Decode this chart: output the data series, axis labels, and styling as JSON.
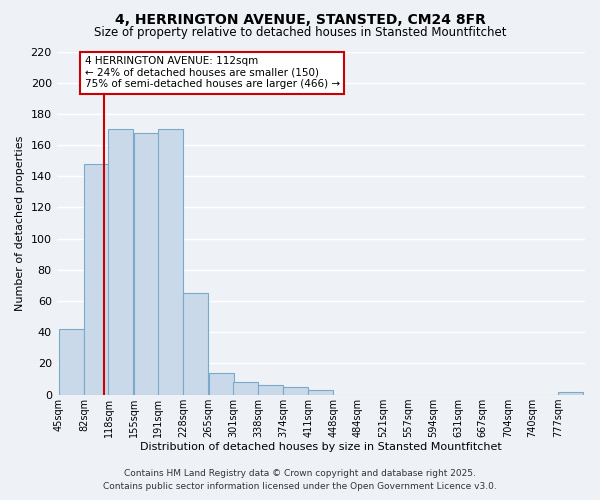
{
  "title": "4, HERRINGTON AVENUE, STANSTED, CM24 8FR",
  "subtitle": "Size of property relative to detached houses in Stansted Mountfitchet",
  "xlabel": "Distribution of detached houses by size in Stansted Mountfitchet",
  "ylabel": "Number of detached properties",
  "bar_labels": [
    "45sqm",
    "82sqm",
    "118sqm",
    "155sqm",
    "191sqm",
    "228sqm",
    "265sqm",
    "301sqm",
    "338sqm",
    "374sqm",
    "411sqm",
    "448sqm",
    "484sqm",
    "521sqm",
    "557sqm",
    "594sqm",
    "631sqm",
    "667sqm",
    "704sqm",
    "740sqm",
    "777sqm"
  ],
  "bar_values": [
    42,
    148,
    170,
    168,
    170,
    65,
    14,
    8,
    6,
    5,
    3,
    0,
    0,
    0,
    0,
    0,
    0,
    0,
    0,
    0,
    2
  ],
  "bar_color": "#c9d9ea",
  "bar_edge_color": "#7aaac8",
  "ylim": [
    0,
    220
  ],
  "yticks": [
    0,
    20,
    40,
    60,
    80,
    100,
    120,
    140,
    160,
    180,
    200,
    220
  ],
  "property_line_x": 112,
  "property_line_color": "#cc0000",
  "annotation_line1": "4 HERRINGTON AVENUE: 112sqm",
  "annotation_line2": "← 24% of detached houses are smaller (150)",
  "annotation_line3": "75% of semi-detached houses are larger (466) →",
  "annotation_box_color": "#ffffff",
  "annotation_box_edge": "#cc0000",
  "footer_line1": "Contains HM Land Registry data © Crown copyright and database right 2025.",
  "footer_line2": "Contains public sector information licensed under the Open Government Licence v3.0.",
  "background_color": "#eef2f7",
  "grid_color": "#ffffff",
  "bin_width": 37
}
